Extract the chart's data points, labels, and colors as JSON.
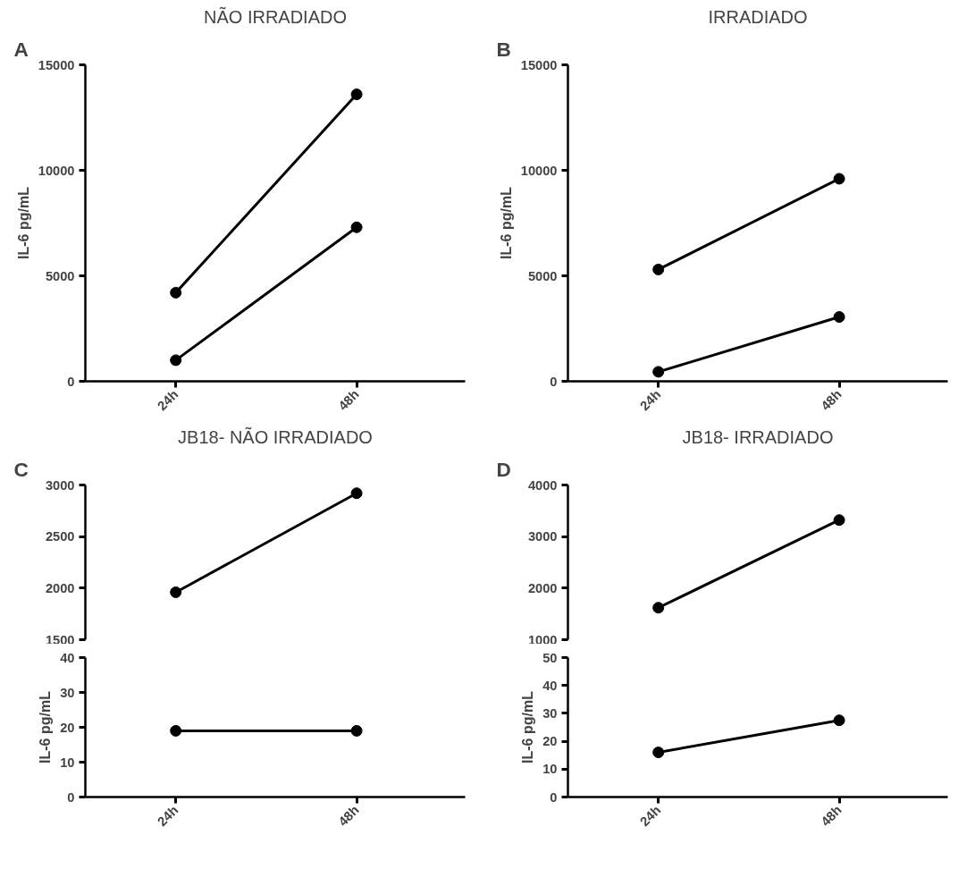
{
  "chart_data": [
    {
      "type": "line",
      "title": "NÃO IRRADIADO",
      "annotations": [
        "A"
      ],
      "ylabel": "IL-6 pg/mL",
      "categories": [
        "24h",
        "48h"
      ],
      "ylim": [
        0,
        15000
      ],
      "yticks": [
        0,
        5000,
        10000,
        15000
      ],
      "marker": "circle",
      "series": [
        {
          "color": "#000000",
          "values": [
            4200,
            13600
          ]
        },
        {
          "color": "#000000",
          "values": [
            1000,
            7300
          ]
        }
      ]
    },
    {
      "type": "line",
      "title": "IRRADIADO",
      "annotations": [
        "B"
      ],
      "ylabel": "IL-6 pg/mL",
      "categories": [
        "24h",
        "48h"
      ],
      "ylim": [
        0,
        15000
      ],
      "yticks": [
        0,
        5000,
        10000,
        15000
      ],
      "marker": "circle",
      "series": [
        {
          "color": "#000000",
          "values": [
            5300,
            9600
          ]
        },
        {
          "color": "#000000",
          "values": [
            450,
            3050
          ]
        }
      ]
    },
    {
      "type": "line",
      "title": "JB18- NÃO IRRADIADO",
      "annotations": [
        "C"
      ],
      "categories": [
        null,
        null
      ],
      "ylim": [
        1500,
        3000
      ],
      "yticks": [
        1500,
        2000,
        2500,
        3000
      ],
      "tick_labels": "y",
      "marker": "circle",
      "series": [
        {
          "color": "#000000",
          "values": [
            1960,
            2920
          ]
        }
      ]
    },
    {
      "type": "line",
      "ylabel": "IL-6 pg/mL",
      "categories": [
        "24h",
        "48h"
      ],
      "ylim": [
        0,
        40
      ],
      "yticks": [
        0,
        10,
        20,
        30,
        40
      ],
      "marker": "circle",
      "series": [
        {
          "color": "#000000",
          "values": [
            19,
            19
          ]
        }
      ]
    },
    {
      "type": "line",
      "title": "JB18- IRRADIADO",
      "annotations": [
        "D"
      ],
      "categories": [
        null,
        null
      ],
      "ylim": [
        1000,
        4000
      ],
      "yticks": [
        1000,
        2000,
        3000,
        4000
      ],
      "tick_labels": "y",
      "marker": "circle",
      "series": [
        {
          "color": "#000000",
          "values": [
            1620,
            3320
          ]
        }
      ]
    },
    {
      "type": "line",
      "ylabel": "IL-6 pg/mL",
      "categories": [
        "24h",
        "48h"
      ],
      "ylim": [
        0,
        50
      ],
      "yticks": [
        0,
        10,
        20,
        30,
        40,
        50
      ],
      "marker": "circle",
      "series": [
        {
          "color": "#000000",
          "values": [
            16,
            27.5
          ]
        }
      ]
    }
  ]
}
